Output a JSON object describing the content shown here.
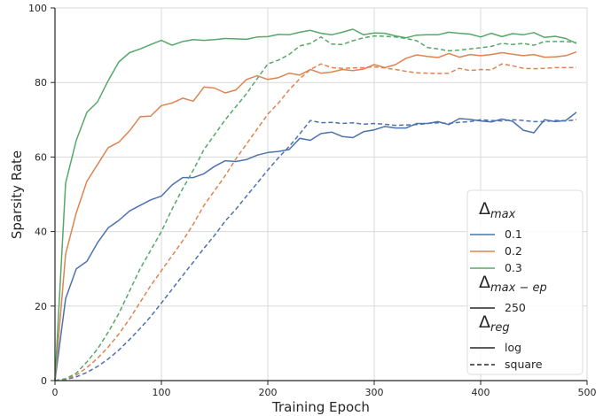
{
  "chart_data": {
    "type": "line",
    "xlabel": "Training Epoch",
    "ylabel": "Sparsity Rate",
    "xlim": [
      0,
      500
    ],
    "ylim": [
      0,
      100
    ],
    "xticks": [
      "0",
      "100",
      "200",
      "300",
      "400",
      "500"
    ],
    "yticks": [
      "0",
      "20",
      "40",
      "60",
      "80",
      "100"
    ],
    "grid": true,
    "legend_placement": "lower-right",
    "colors": {
      "0.1": "#4c72b0",
      "0.2": "#dd8452",
      "0.3": "#55a868"
    },
    "legend": {
      "groups": [
        {
          "title": "Δ",
          "subscript": "max",
          "entries": [
            {
              "label": "0.1",
              "color": "#4c72b0",
              "style": "solid"
            },
            {
              "label": "0.2",
              "color": "#dd8452",
              "style": "solid"
            },
            {
              "label": "0.3",
              "color": "#55a868",
              "style": "solid"
            }
          ]
        },
        {
          "title": "Δ",
          "subscript": "max − ep",
          "entries": [
            {
              "label": "250",
              "color": "#262626",
              "style": "solid"
            }
          ]
        },
        {
          "title": "Δ",
          "subscript": "reg",
          "entries": [
            {
              "label": "log",
              "color": "#262626",
              "style": "solid"
            },
            {
              "label": "square",
              "color": "#262626",
              "style": "dashed"
            }
          ]
        }
      ]
    },
    "series": [
      {
        "delta_max": "0.1",
        "reg": "log",
        "color": "#4c72b0",
        "style": "solid",
        "x": [
          0,
          10,
          20,
          30,
          40,
          50,
          60,
          70,
          80,
          90,
          100,
          110,
          120,
          130,
          140,
          150,
          160,
          170,
          180,
          190,
          200,
          210,
          220,
          230,
          240,
          250,
          260,
          270,
          280,
          290,
          300,
          310,
          320,
          330,
          340,
          350,
          360,
          370,
          380,
          390,
          400,
          410,
          420,
          430,
          440,
          450,
          460,
          470,
          480,
          490
        ],
        "y": [
          0,
          22,
          30,
          32,
          37,
          41,
          43,
          45.5,
          47,
          48.5,
          49.5,
          52.5,
          54.5,
          54.5,
          55.5,
          57.5,
          59,
          58.8,
          59.3,
          60.5,
          61.2,
          61.5,
          62,
          65,
          64.5,
          66.3,
          66.7,
          65.5,
          65.2,
          66.8,
          67.3,
          68.2,
          67.8,
          67.8,
          69,
          69,
          69.5,
          68.7,
          70.3,
          70.1,
          69.7,
          69.4,
          70.2,
          69.6,
          67.2,
          66.5,
          70,
          69.5,
          69.8,
          72
        ]
      },
      {
        "delta_max": "0.2",
        "reg": "log",
        "color": "#dd8452",
        "style": "solid",
        "x": [
          0,
          10,
          20,
          30,
          40,
          50,
          60,
          70,
          80,
          90,
          100,
          110,
          120,
          130,
          140,
          150,
          160,
          170,
          180,
          190,
          200,
          210,
          220,
          230,
          240,
          250,
          260,
          270,
          280,
          290,
          300,
          310,
          320,
          330,
          340,
          350,
          360,
          370,
          380,
          390,
          400,
          410,
          420,
          430,
          440,
          450,
          460,
          470,
          480,
          490
        ],
        "y": [
          0,
          34,
          45,
          53.5,
          58,
          62.5,
          64,
          67,
          70.8,
          71,
          73.8,
          74.5,
          75.8,
          75,
          78.8,
          78.5,
          77.2,
          78,
          80.8,
          81.8,
          80.8,
          81.3,
          82.5,
          82,
          83.5,
          82.5,
          82.8,
          83.5,
          83.2,
          83.6,
          84.8,
          84,
          84.8,
          86.5,
          87.4,
          87,
          86.7,
          87.8,
          86.8,
          87.5,
          87.2,
          87.5,
          88,
          87.6,
          87.2,
          87.5,
          86.8,
          86.9,
          87.2,
          88.2
        ]
      },
      {
        "delta_max": "0.3",
        "reg": "log",
        "color": "#55a868",
        "style": "solid",
        "x": [
          0,
          10,
          20,
          30,
          40,
          50,
          60,
          70,
          80,
          90,
          100,
          110,
          120,
          130,
          140,
          150,
          160,
          170,
          180,
          190,
          200,
          210,
          220,
          230,
          240,
          250,
          260,
          270,
          280,
          290,
          300,
          310,
          320,
          330,
          340,
          350,
          360,
          370,
          380,
          390,
          400,
          410,
          420,
          430,
          440,
          450,
          460,
          470,
          480,
          490
        ],
        "y": [
          0,
          53,
          64.5,
          72,
          74.8,
          80.5,
          85.5,
          88,
          89,
          90.2,
          91.3,
          90,
          91,
          91.5,
          91.3,
          91.5,
          91.8,
          91.7,
          91.6,
          92.2,
          92.3,
          92.9,
          92.8,
          93.5,
          94,
          93.2,
          92.8,
          93.5,
          94.3,
          92.8,
          93.3,
          93.2,
          92.5,
          92,
          92.7,
          92.8,
          92.8,
          93.5,
          93.2,
          93,
          92.2,
          93.2,
          92.3,
          93.1,
          92.8,
          93.4,
          92.1,
          92.4,
          91.8,
          90.5
        ]
      },
      {
        "delta_max": "0.1",
        "reg": "square",
        "color": "#4c72b0",
        "style": "dashed",
        "x": [
          0,
          10,
          20,
          30,
          40,
          50,
          60,
          70,
          80,
          90,
          100,
          110,
          120,
          130,
          140,
          150,
          160,
          170,
          180,
          190,
          200,
          210,
          220,
          230,
          240,
          250,
          260,
          270,
          280,
          290,
          300,
          310,
          320,
          330,
          340,
          350,
          360,
          370,
          380,
          390,
          400,
          410,
          420,
          430,
          440,
          450,
          460,
          470,
          480,
          490
        ],
        "y": [
          0,
          0.3,
          1,
          2.2,
          3.8,
          5.8,
          8.2,
          11,
          14,
          17.2,
          20.8,
          24.5,
          28.2,
          31.8,
          35.5,
          39,
          42.8,
          46,
          49.5,
          53,
          56.5,
          59.8,
          62.8,
          66.2,
          69.8,
          69.2,
          69.3,
          69,
          69.2,
          68.8,
          69,
          68.8,
          68.5,
          68.6,
          68.7,
          69,
          69.2,
          69,
          69.3,
          69.5,
          70,
          69.8,
          69.7,
          70,
          69.8,
          69.5,
          69.5,
          69.8,
          69.7,
          70
        ]
      },
      {
        "delta_max": "0.2",
        "reg": "square",
        "color": "#dd8452",
        "style": "dashed",
        "x": [
          0,
          10,
          20,
          30,
          40,
          50,
          60,
          70,
          80,
          90,
          100,
          110,
          120,
          130,
          140,
          150,
          160,
          170,
          180,
          190,
          200,
          210,
          220,
          230,
          240,
          250,
          260,
          270,
          280,
          290,
          300,
          310,
          320,
          330,
          340,
          350,
          360,
          370,
          380,
          390,
          400,
          410,
          420,
          430,
          440,
          450,
          460,
          470,
          480,
          490
        ],
        "y": [
          0,
          0.4,
          1.5,
          3.5,
          6,
          9,
          12.5,
          16.5,
          21,
          25.5,
          29.5,
          33.5,
          37.5,
          42,
          47,
          51,
          55,
          59.5,
          63.5,
          67.5,
          71.5,
          74.5,
          78,
          81,
          83.5,
          85,
          84,
          83.8,
          83.9,
          84,
          84.2,
          83.9,
          83.5,
          83,
          82.6,
          82.5,
          82.4,
          82.5,
          83.8,
          83.2,
          83.5,
          83.4,
          85,
          84.5,
          83.8,
          83.7,
          83.8,
          84,
          84,
          84
        ]
      },
      {
        "delta_max": "0.3",
        "reg": "square",
        "color": "#55a868",
        "style": "dashed",
        "x": [
          0,
          10,
          20,
          30,
          40,
          50,
          60,
          70,
          80,
          90,
          100,
          110,
          120,
          130,
          140,
          150,
          160,
          170,
          180,
          190,
          200,
          210,
          220,
          230,
          240,
          250,
          260,
          270,
          280,
          290,
          300,
          310,
          320,
          330,
          340,
          350,
          360,
          370,
          380,
          390,
          400,
          410,
          420,
          430,
          440,
          450,
          460,
          470,
          480,
          490
        ],
        "y": [
          0,
          0.5,
          2,
          5,
          8.5,
          13,
          18,
          24,
          30,
          35,
          40,
          46,
          51.5,
          56.5,
          62,
          66,
          70,
          73.5,
          77,
          81,
          85,
          86,
          87.5,
          89.8,
          90.5,
          92.2,
          90.3,
          90.2,
          91.2,
          92,
          92.5,
          92.4,
          92.2,
          91.8,
          91.2,
          89.4,
          89,
          88.5,
          88.7,
          89,
          89.3,
          89.7,
          90.5,
          90.2,
          90.5,
          90,
          91,
          91,
          91,
          90.7
        ]
      }
    ]
  }
}
